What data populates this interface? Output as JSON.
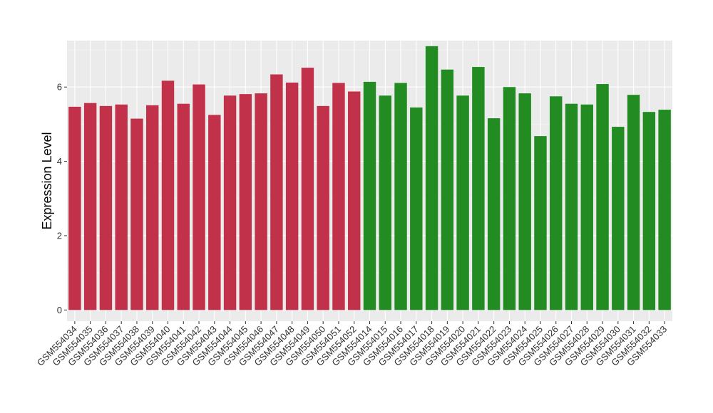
{
  "chart_data": {
    "type": "bar",
    "ylabel": "Expression Level",
    "xlabel": "",
    "ylim": [
      -0.3,
      7.25
    ],
    "yticks": [
      0,
      2,
      4,
      6
    ],
    "grid": true,
    "legend": "none",
    "panel_background": "#ebebeb",
    "categories": [
      "GSM554034",
      "GSM554035",
      "GSM554036",
      "GSM554037",
      "GSM554038",
      "GSM554039",
      "GSM554040",
      "GSM554041",
      "GSM554042",
      "GSM554043",
      "GSM554044",
      "GSM554045",
      "GSM554046",
      "GSM554047",
      "GSM554048",
      "GSM554049",
      "GSM554050",
      "GSM554051",
      "GSM554052",
      "GSM554014",
      "GSM554015",
      "GSM554016",
      "GSM554017",
      "GSM554018",
      "GSM554019",
      "GSM554020",
      "GSM554021",
      "GSM554022",
      "GSM554023",
      "GSM554024",
      "GSM554025",
      "GSM554026",
      "GSM554027",
      "GSM554028",
      "GSM554029",
      "GSM554030",
      "GSM554031",
      "GSM554032",
      "GSM554033"
    ],
    "values": [
      5.47,
      5.57,
      5.49,
      5.53,
      5.15,
      5.51,
      6.17,
      5.55,
      6.07,
      5.25,
      5.77,
      5.81,
      5.83,
      6.34,
      6.12,
      6.52,
      5.49,
      6.11,
      5.88,
      6.14,
      5.77,
      6.11,
      5.45,
      7.1,
      6.47,
      5.77,
      6.54,
      5.16,
      6.0,
      5.83,
      4.68,
      5.75,
      5.55,
      5.53,
      6.08,
      4.93,
      5.79,
      5.33,
      5.39
    ],
    "colors": [
      "#c1314a",
      "#c1314a",
      "#c1314a",
      "#c1314a",
      "#c1314a",
      "#c1314a",
      "#c1314a",
      "#c1314a",
      "#c1314a",
      "#c1314a",
      "#c1314a",
      "#c1314a",
      "#c1314a",
      "#c1314a",
      "#c1314a",
      "#c1314a",
      "#c1314a",
      "#c1314a",
      "#c1314a",
      "#228b22",
      "#228b22",
      "#228b22",
      "#228b22",
      "#228b22",
      "#228b22",
      "#228b22",
      "#228b22",
      "#228b22",
      "#228b22",
      "#228b22",
      "#228b22",
      "#228b22",
      "#228b22",
      "#228b22",
      "#228b22",
      "#228b22",
      "#228b22",
      "#228b22",
      "#228b22"
    ]
  }
}
